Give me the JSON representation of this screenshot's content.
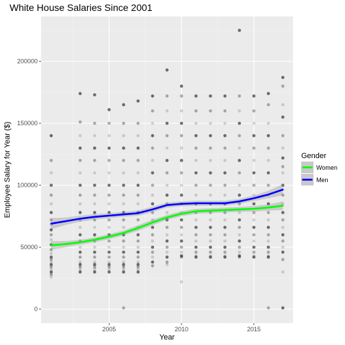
{
  "chart_data": {
    "type": "scatter",
    "title": "White House Salaries Since 2001",
    "xlabel": "Year",
    "ylabel": "Employee Salary for Year ($)",
    "xlim": [
      2000.3,
      2017.7
    ],
    "ylim": [
      -11250,
      236250
    ],
    "x_ticks": [
      2005,
      2010,
      2015
    ],
    "x_tick_labels": [
      "2005",
      "2010",
      "2015"
    ],
    "y_ticks": [
      0,
      50000,
      100000,
      150000,
      200000
    ],
    "y_tick_labels": [
      "0",
      "50000",
      "100000",
      "150000",
      "200000"
    ],
    "grid": true,
    "legend": {
      "title": "Gender",
      "position": "right"
    },
    "years": [
      2001,
      2002,
      2003,
      2004,
      2005,
      2006,
      2007,
      2008,
      2009,
      2010,
      2011,
      2012,
      2013,
      2014,
      2015,
      2016,
      2017
    ],
    "points_by_year": {
      "2001": [
        140000,
        120000,
        110000,
        100000,
        92000,
        85000,
        78000,
        72000,
        68000,
        64000,
        60000,
        56000,
        52000,
        48000,
        45000,
        42000,
        40000,
        38000,
        36000,
        34000,
        32000,
        30000,
        28000,
        26000
      ],
      "2002": [],
      "2003": [
        174000,
        151000,
        140000,
        130000,
        120000,
        110000,
        100000,
        92000,
        85000,
        78000,
        72000,
        66000,
        60000,
        55000,
        50000,
        46000,
        42000,
        38000,
        36000,
        34000,
        32000,
        30000
      ],
      "2004": [
        173000,
        150000,
        140000,
        130000,
        120000,
        110000,
        100000,
        92000,
        85000,
        78000,
        72000,
        66000,
        60000,
        55000,
        50000,
        46000,
        42000,
        38000,
        36000,
        34000,
        32000,
        30000
      ],
      "2005": [
        161000,
        150000,
        140000,
        130000,
        120000,
        110000,
        100000,
        92000,
        85000,
        78000,
        72000,
        66000,
        60000,
        55000,
        50000,
        46000,
        42000,
        38000,
        36000,
        34000,
        32000,
        30000
      ],
      "2006": [
        165000,
        150000,
        140000,
        130000,
        120000,
        110000,
        100000,
        92000,
        85000,
        78000,
        72000,
        66000,
        60000,
        55000,
        50000,
        46000,
        42000,
        38000,
        36000,
        34000,
        32000,
        30000,
        1000
      ],
      "2007": [
        168000,
        150000,
        140000,
        130000,
        120000,
        110000,
        100000,
        92000,
        85000,
        78000,
        72000,
        66000,
        60000,
        55000,
        50000,
        46000,
        42000,
        38000,
        36000,
        34000,
        32000,
        30000
      ],
      "2008": [
        172000,
        160000,
        150000,
        140000,
        130000,
        120000,
        110000,
        100000,
        92000,
        85000,
        78000,
        72000,
        66000,
        60000,
        55000,
        50000,
        46000,
        42000,
        38000,
        35000
      ],
      "2009": [
        193000,
        172000,
        160000,
        150000,
        140000,
        130000,
        120000,
        110000,
        100000,
        92000,
        85000,
        78000,
        72000,
        66000,
        60000,
        55000,
        50000,
        46000,
        42000,
        38000,
        36000
      ],
      "2010": [
        180000,
        172000,
        160000,
        150000,
        140000,
        130000,
        120000,
        110000,
        100000,
        92000,
        85000,
        78000,
        72000,
        66000,
        60000,
        55000,
        50000,
        46000,
        43000,
        42000,
        22000
      ],
      "2011": [
        172000,
        160000,
        150000,
        140000,
        130000,
        120000,
        110000,
        100000,
        92000,
        85000,
        78000,
        72000,
        66000,
        60000,
        55000,
        50000,
        46000,
        43000,
        42000
      ],
      "2012": [
        172000,
        160000,
        150000,
        140000,
        130000,
        120000,
        110000,
        100000,
        92000,
        85000,
        78000,
        72000,
        66000,
        60000,
        55000,
        50000,
        46000,
        43000,
        42000
      ],
      "2013": [
        172000,
        160000,
        150000,
        140000,
        130000,
        120000,
        110000,
        100000,
        92000,
        85000,
        78000,
        72000,
        66000,
        60000,
        55000,
        50000,
        46000,
        43000,
        42000
      ],
      "2014": [
        225000,
        172000,
        160000,
        150000,
        140000,
        130000,
        120000,
        110000,
        100000,
        92000,
        85000,
        78000,
        72000,
        66000,
        60000,
        55000,
        50000,
        46000,
        43000,
        42000
      ],
      "2015": [
        172000,
        160000,
        150000,
        140000,
        130000,
        120000,
        110000,
        100000,
        92000,
        85000,
        78000,
        72000,
        66000,
        60000,
        55000,
        50000,
        46000,
        43000,
        42000
      ],
      "2016": [
        174000,
        165000,
        150000,
        140000,
        130000,
        120000,
        110000,
        100000,
        92000,
        85000,
        78000,
        72000,
        66000,
        60000,
        55000,
        50000,
        46000,
        43000,
        42000,
        1000
      ],
      "2017": [
        187000,
        180000,
        165000,
        155000,
        140000,
        130000,
        122000,
        115000,
        110000,
        100000,
        92000,
        85000,
        78000,
        72000,
        66000,
        60000,
        55000,
        50000,
        46000,
        40000,
        30000,
        1000
      ]
    },
    "series": [
      {
        "name": "Women",
        "color": "#00ff00",
        "x": [
          2001,
          2002,
          2003,
          2004,
          2005,
          2006,
          2007,
          2008,
          2009,
          2010,
          2011,
          2012,
          2013,
          2014,
          2015,
          2016,
          2017
        ],
        "values": [
          51500,
          52500,
          54000,
          56000,
          58500,
          61500,
          65500,
          70000,
          74000,
          77000,
          79000,
          79500,
          80000,
          80500,
          81000,
          82000,
          83500
        ],
        "band": [
          3500,
          2500,
          2000,
          2000,
          2000,
          2000,
          2200,
          2200,
          2000,
          2000,
          2000,
          2000,
          2000,
          2000,
          2200,
          2500,
          3500
        ]
      },
      {
        "name": "Men",
        "color": "#0000ff",
        "x": [
          2001,
          2002,
          2003,
          2004,
          2005,
          2006,
          2007,
          2008,
          2009,
          2010,
          2011,
          2012,
          2013,
          2014,
          2015,
          2016,
          2017
        ],
        "values": [
          69000,
          71000,
          73000,
          74500,
          75500,
          76500,
          77500,
          80500,
          84000,
          85000,
          85500,
          85500,
          85500,
          87000,
          89500,
          92500,
          96500
        ],
        "band": [
          4500,
          3000,
          2500,
          2200,
          2000,
          2000,
          2200,
          2200,
          2000,
          2000,
          2000,
          2000,
          2000,
          2000,
          2300,
          3000,
          4500
        ]
      }
    ]
  }
}
